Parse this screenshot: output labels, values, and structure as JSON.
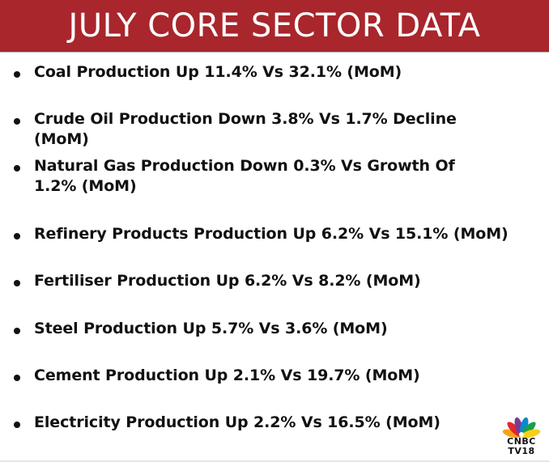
{
  "header": {
    "title": "JULY CORE SECTOR DATA"
  },
  "items": [
    {
      "text": "Coal Production Up 11.4% Vs 32.1% (MoM)"
    },
    {
      "text": "Crude Oil Production Down 3.8% Vs 1.7% Decline (MoM)"
    },
    {
      "text": "Natural Gas Production Down 0.3% Vs Growth Of 1.2% (MoM)"
    },
    {
      "text": "Refinery Products Production Up 6.2% Vs 15.1% (MoM)"
    },
    {
      "text": "Fertiliser Production Up 6.2% Vs 8.2% (MoM)"
    },
    {
      "text": "Steel Production Up 5.7% Vs 3.6% (MoM)"
    },
    {
      "text": "Cement Production Up 2.1% Vs 19.7% (MoM)"
    },
    {
      "text": "Electricity Production Up 2.2% Vs 16.5% (MoM)"
    }
  ],
  "logo": {
    "line1": "CNBC",
    "line2": "TV18"
  },
  "colors": {
    "header_bg": "#a8262c",
    "text": "#111111"
  }
}
